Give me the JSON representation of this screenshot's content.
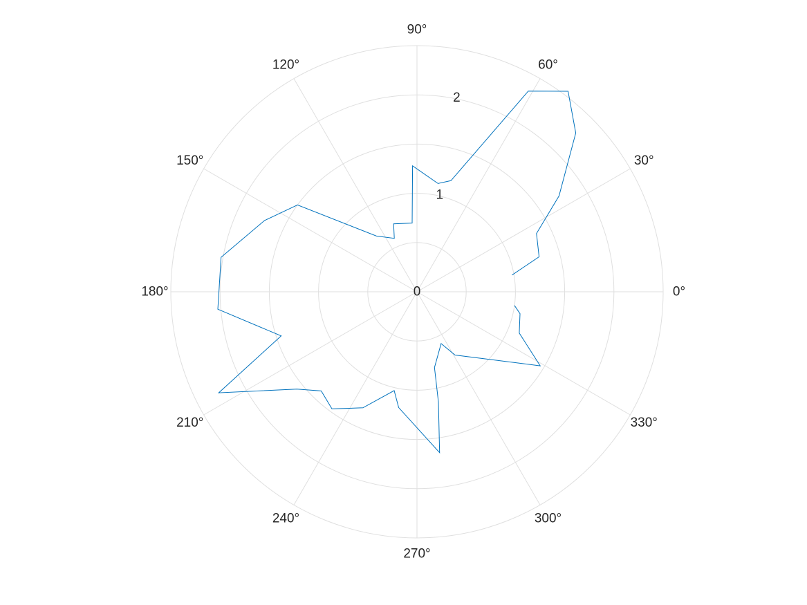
{
  "chart_data": {
    "type": "polar-line",
    "title": "",
    "r_ticks": [
      0,
      1,
      2
    ],
    "r_tick_labels": [
      "0",
      "1",
      "2"
    ],
    "r_lim": [
      0,
      2.5
    ],
    "theta_ticks_deg": [
      0,
      30,
      60,
      90,
      120,
      150,
      180,
      210,
      240,
      270,
      300,
      330
    ],
    "theta_tick_labels": [
      "0°",
      "30°",
      "60°",
      "90°",
      "120°",
      "150°",
      "180°",
      "210°",
      "240°",
      "270°",
      "300°",
      "330°"
    ],
    "grid": true,
    "series": [
      {
        "color": "#0072bd",
        "points": [
          {
            "theta": 10,
            "r": 0.98
          },
          {
            "theta": 16,
            "r": 1.29
          },
          {
            "theta": 26,
            "r": 1.35
          },
          {
            "theta": 34,
            "r": 1.74
          },
          {
            "theta": 45,
            "r": 2.28
          },
          {
            "theta": 53,
            "r": 2.55
          },
          {
            "theta": 61,
            "r": 2.33
          },
          {
            "theta": 73,
            "r": 1.18
          },
          {
            "theta": 79,
            "r": 1.12
          },
          {
            "theta": 92,
            "r": 1.28
          },
          {
            "theta": 94,
            "r": 0.7
          },
          {
            "theta": 109,
            "r": 0.73
          },
          {
            "theta": 113,
            "r": 0.59
          },
          {
            "theta": 126,
            "r": 0.7
          },
          {
            "theta": 144,
            "r": 1.5
          },
          {
            "theta": 155,
            "r": 1.71
          },
          {
            "theta": 170,
            "r": 2.02
          },
          {
            "theta": 185,
            "r": 2.03
          },
          {
            "theta": 198,
            "r": 1.45
          },
          {
            "theta": 207,
            "r": 2.26
          },
          {
            "theta": 219,
            "r": 1.57
          },
          {
            "theta": 226,
            "r": 1.4
          },
          {
            "theta": 234,
            "r": 1.47
          },
          {
            "theta": 245,
            "r": 1.3
          },
          {
            "theta": 257,
            "r": 1.03
          },
          {
            "theta": 261,
            "r": 1.19
          },
          {
            "theta": 278,
            "r": 1.65
          },
          {
            "theta": 281,
            "r": 1.14
          },
          {
            "theta": 283,
            "r": 0.79
          },
          {
            "theta": 295,
            "r": 0.58
          },
          {
            "theta": 301,
            "r": 0.75
          },
          {
            "theta": 329,
            "r": 1.46
          },
          {
            "theta": 338,
            "r": 1.12
          },
          {
            "theta": 348,
            "r": 1.07
          },
          {
            "theta": 352,
            "r": 1.0
          }
        ]
      }
    ]
  }
}
